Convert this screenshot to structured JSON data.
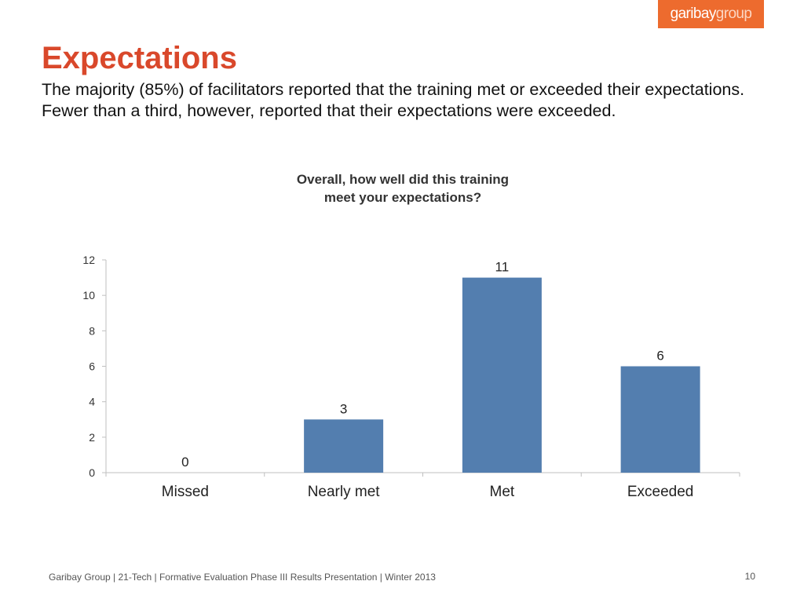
{
  "logo": {
    "text_main": "garibay",
    "text_light": "group",
    "background_color": "#ed6b2e"
  },
  "slide": {
    "title": "Expectations",
    "subtitle": "The majority (85%) of facilitators reported that the training met or exceeded their expectations. Fewer than a third, however, reported that their expectations were exceeded.",
    "title_color": "#d9482b"
  },
  "chart": {
    "title_line1": "Overall, how well did this training",
    "title_line2": "meet your expectations?"
  },
  "chart_data": {
    "type": "bar",
    "title": "Overall, how well did this training meet your expectations?",
    "categories": [
      "Missed",
      "Nearly met",
      "Met",
      "Exceeded"
    ],
    "values": [
      0,
      3,
      11,
      6
    ],
    "data_labels": [
      "0",
      "3",
      "11",
      "6"
    ],
    "xlabel": "",
    "ylabel": "",
    "ylim": [
      0,
      12
    ],
    "yticks": [
      0,
      2,
      4,
      6,
      8,
      10,
      12
    ],
    "grid": false,
    "legend": "none",
    "bar_color": "#537eaf"
  },
  "footer": {
    "text": "Garibay Group | 21-Tech | Formative Evaluation Phase III Results Presentation | Winter 2013",
    "page_number": "10"
  }
}
